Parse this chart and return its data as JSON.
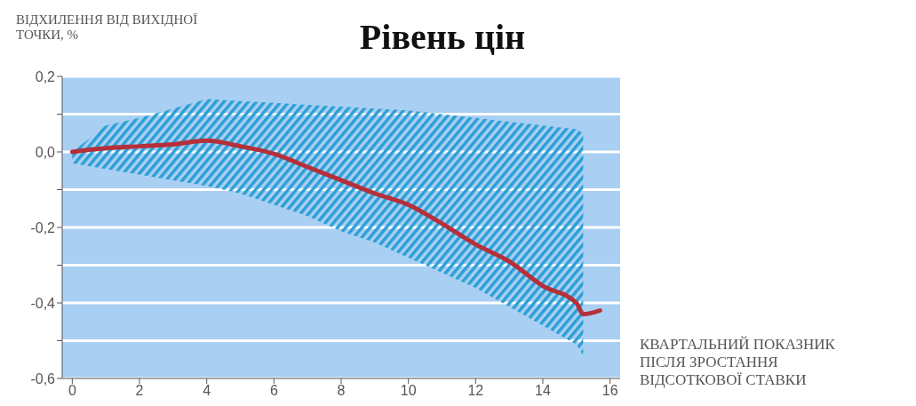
{
  "chart_data": {
    "type": "line",
    "title": "Рівень цін",
    "ylabel": "ВІДХИЛЕННЯ ВІД ВИХІДНОЇ ТОЧКИ, %",
    "xlabel": "КВАРТАЛЬНИЙ ПОКАЗНИК ПІСЛЯ ЗРОСТАННЯ ВІДСОТКОВОЇ СТАВКИ",
    "series": [
      {
        "color": "#b5303a",
        "x": [
          0,
          1,
          2,
          3,
          4,
          5,
          6,
          7,
          8,
          9,
          10,
          11,
          12,
          13,
          14,
          15,
          15.2,
          15.7
        ],
        "values": [
          0,
          0.01,
          0.015,
          0.02,
          0.03,
          0.015,
          -0.005,
          -0.04,
          -0.075,
          -0.11,
          -0.14,
          -0.19,
          -0.245,
          -0.29,
          -0.355,
          -0.4,
          -0.43,
          -0.42
        ],
        "lower": [
          -0.03,
          -0.045,
          -0.06,
          -0.075,
          -0.09,
          -0.11,
          -0.14,
          -0.17,
          -0.21,
          -0.24,
          -0.28,
          -0.32,
          -0.36,
          -0.41,
          -0.46,
          -0.51,
          -0.54,
          null
        ],
        "upper": [
          0,
          0.07,
          0.09,
          0.115,
          0.14,
          0.135,
          0.13,
          0.125,
          0.12,
          0.115,
          0.11,
          0.1,
          0.09,
          0.08,
          0.07,
          0.06,
          0.05,
          null
        ]
      }
    ],
    "xlim": [
      -0.3,
      16.3
    ],
    "xticks": [
      0,
      2,
      4,
      6,
      8,
      10,
      12,
      14,
      16
    ],
    "ylim": [
      -0.6,
      0.2
    ],
    "yticks": [
      {
        "value": 0.2,
        "label": "0,2"
      },
      {
        "value": 0.1,
        "label": null
      },
      {
        "value": 0,
        "label": "0,0"
      },
      {
        "value": -0.1,
        "label": null
      },
      {
        "value": -0.2,
        "label": "-0,2"
      },
      {
        "value": -0.3,
        "label": null
      },
      {
        "value": -0.4,
        "label": "-0,4"
      },
      {
        "value": -0.5,
        "label": null
      },
      {
        "value": -0.6,
        "label": "-0,6"
      }
    ],
    "grid": "y"
  }
}
